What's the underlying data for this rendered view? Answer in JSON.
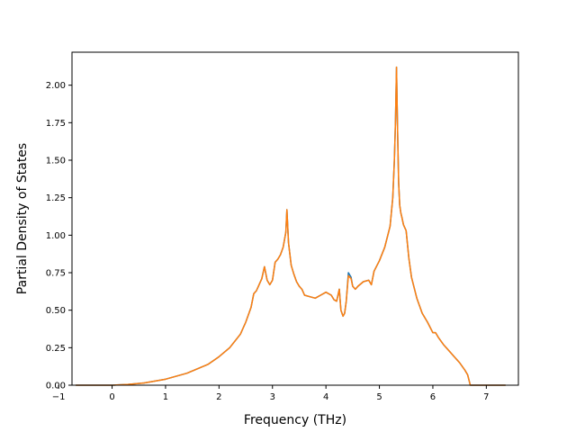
{
  "chart_data": {
    "type": "line",
    "title": "",
    "xlabel": "Frequency (THz)",
    "ylabel": "Partial Density of States",
    "xlim": [
      -0.75,
      7.6
    ],
    "ylim": [
      0,
      2.22
    ],
    "xticks": [
      -1,
      0,
      1,
      2,
      3,
      4,
      5,
      6,
      7
    ],
    "yticks": [
      0.0,
      0.25,
      0.5,
      0.75,
      1.0,
      1.25,
      1.5,
      1.75,
      2.0
    ],
    "xtick_labels": [
      "−1",
      "0",
      "1",
      "2",
      "3",
      "4",
      "5",
      "6",
      "7"
    ],
    "ytick_labels": [
      "0.00",
      "0.25",
      "0.50",
      "0.75",
      "1.00",
      "1.25",
      "1.50",
      "1.75",
      "2.00"
    ],
    "grid": false,
    "legend": false,
    "series": [
      {
        "color": "#1f77b4",
        "x": [
          -0.68,
          0.0,
          0.3,
          0.6,
          1.0,
          1.4,
          1.8,
          2.0,
          2.2,
          2.4,
          2.5,
          2.6,
          2.65,
          2.7,
          2.75,
          2.8,
          2.85,
          2.9,
          2.95,
          3.0,
          3.05,
          3.1,
          3.15,
          3.2,
          3.25,
          3.27,
          3.3,
          3.35,
          3.4,
          3.45,
          3.5,
          3.55,
          3.6,
          3.7,
          3.8,
          3.9,
          4.0,
          4.1,
          4.15,
          4.2,
          4.25,
          4.28,
          4.32,
          4.35,
          4.38,
          4.42,
          4.47,
          4.5,
          4.55,
          4.6,
          4.7,
          4.8,
          4.85,
          4.9,
          5.0,
          5.1,
          5.2,
          5.25,
          5.28,
          5.3,
          5.32,
          5.34,
          5.36,
          5.38,
          5.4,
          5.42,
          5.45,
          5.5,
          5.55,
          5.6,
          5.7,
          5.8,
          5.9,
          6.0,
          6.05,
          6.1,
          6.2,
          6.3,
          6.4,
          6.5,
          6.6,
          6.65,
          6.7,
          6.75,
          7.0,
          7.36
        ],
        "y": [
          0.0,
          0.0,
          0.005,
          0.015,
          0.04,
          0.08,
          0.14,
          0.19,
          0.25,
          0.34,
          0.42,
          0.52,
          0.61,
          0.63,
          0.67,
          0.71,
          0.79,
          0.7,
          0.67,
          0.7,
          0.82,
          0.84,
          0.87,
          0.92,
          1.02,
          1.17,
          0.95,
          0.8,
          0.74,
          0.69,
          0.66,
          0.64,
          0.6,
          0.59,
          0.58,
          0.6,
          0.62,
          0.6,
          0.57,
          0.56,
          0.64,
          0.5,
          0.46,
          0.48,
          0.56,
          0.75,
          0.72,
          0.66,
          0.64,
          0.66,
          0.69,
          0.7,
          0.67,
          0.76,
          0.83,
          0.92,
          1.06,
          1.25,
          1.5,
          1.75,
          2.12,
          1.7,
          1.35,
          1.2,
          1.15,
          1.12,
          1.07,
          1.03,
          0.85,
          0.72,
          0.58,
          0.48,
          0.42,
          0.35,
          0.35,
          0.32,
          0.27,
          0.23,
          0.19,
          0.15,
          0.1,
          0.07,
          0.0,
          0.0,
          0.0,
          0.0
        ]
      },
      {
        "color": "#ff7f0e",
        "x": [
          -0.68,
          0.0,
          0.3,
          0.6,
          1.0,
          1.4,
          1.8,
          2.0,
          2.2,
          2.4,
          2.5,
          2.6,
          2.65,
          2.7,
          2.75,
          2.8,
          2.85,
          2.9,
          2.95,
          3.0,
          3.05,
          3.1,
          3.15,
          3.2,
          3.25,
          3.27,
          3.3,
          3.35,
          3.4,
          3.45,
          3.5,
          3.55,
          3.6,
          3.7,
          3.8,
          3.9,
          4.0,
          4.1,
          4.15,
          4.2,
          4.25,
          4.28,
          4.32,
          4.35,
          4.38,
          4.42,
          4.47,
          4.5,
          4.55,
          4.6,
          4.7,
          4.8,
          4.85,
          4.9,
          5.0,
          5.1,
          5.2,
          5.25,
          5.28,
          5.3,
          5.32,
          5.34,
          5.36,
          5.38,
          5.4,
          5.42,
          5.45,
          5.5,
          5.55,
          5.6,
          5.7,
          5.8,
          5.9,
          6.0,
          6.05,
          6.1,
          6.2,
          6.3,
          6.4,
          6.5,
          6.6,
          6.65,
          6.7,
          6.75,
          7.0,
          7.36
        ],
        "y": [
          0.0,
          0.0,
          0.005,
          0.015,
          0.04,
          0.08,
          0.14,
          0.19,
          0.25,
          0.34,
          0.42,
          0.52,
          0.61,
          0.63,
          0.67,
          0.71,
          0.79,
          0.7,
          0.67,
          0.7,
          0.82,
          0.84,
          0.87,
          0.92,
          1.02,
          1.17,
          0.95,
          0.8,
          0.74,
          0.69,
          0.66,
          0.64,
          0.6,
          0.59,
          0.58,
          0.6,
          0.62,
          0.6,
          0.57,
          0.56,
          0.64,
          0.5,
          0.46,
          0.48,
          0.56,
          0.73,
          0.71,
          0.66,
          0.64,
          0.66,
          0.69,
          0.7,
          0.67,
          0.76,
          0.83,
          0.92,
          1.06,
          1.25,
          1.5,
          1.75,
          2.12,
          1.7,
          1.35,
          1.2,
          1.15,
          1.12,
          1.07,
          1.03,
          0.85,
          0.72,
          0.58,
          0.48,
          0.42,
          0.35,
          0.35,
          0.32,
          0.27,
          0.23,
          0.19,
          0.15,
          0.1,
          0.07,
          0.0,
          0.0,
          0.0,
          0.0
        ]
      }
    ]
  }
}
